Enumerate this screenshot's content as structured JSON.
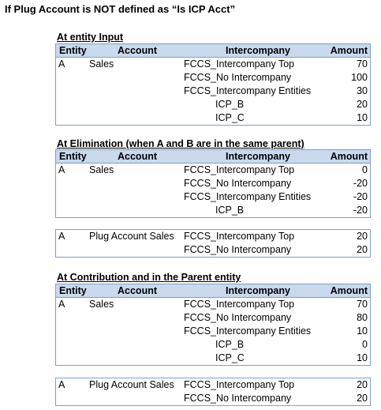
{
  "title": "If Plug Account is NOT defined as “Is ICP Acct”",
  "headers": {
    "entity": "Entity",
    "account": "Account",
    "intercompany": "Intercompany",
    "amount": "Amount"
  },
  "sections": [
    {
      "title": "At entity Input",
      "tables": [
        {
          "has_header": true,
          "rows": [
            {
              "entity": "A",
              "account": "Sales",
              "intercompany": "FCCS_Intercompany Top",
              "amount": "70"
            },
            {
              "entity": "",
              "account": "",
              "intercompany": "FCCS_No Intercompany",
              "amount": "100"
            },
            {
              "entity": "",
              "account": "",
              "intercompany": "FCCS_Intercompany Entities",
              "amount": "30"
            },
            {
              "entity": "",
              "account": "",
              "intercompany": "ICP_B",
              "amount": "20",
              "sub": true
            },
            {
              "entity": "",
              "account": "",
              "intercompany": "ICP_C",
              "amount": "10",
              "sub": true
            }
          ]
        }
      ]
    },
    {
      "title": "At Elimination (when A and B are in the same parent)",
      "tables": [
        {
          "has_header": true,
          "rows": [
            {
              "entity": "A",
              "account": "Sales",
              "intercompany": "FCCS_Intercompany Top",
              "amount": "0"
            },
            {
              "entity": "",
              "account": "",
              "intercompany": "FCCS_No Intercompany",
              "amount": "-20"
            },
            {
              "entity": "",
              "account": "",
              "intercompany": "FCCS_Intercompany Entities",
              "amount": "-20"
            },
            {
              "entity": "",
              "account": "",
              "intercompany": "ICP_B",
              "amount": "-20",
              "sub": true
            }
          ]
        },
        {
          "has_header": false,
          "rows": [
            {
              "entity": "A",
              "account": "Plug Account Sales",
              "intercompany": "FCCS_Intercompany Top",
              "amount": "20"
            },
            {
              "entity": "",
              "account": "",
              "intercompany": "FCCS_No Intercompany",
              "amount": "20"
            }
          ]
        }
      ]
    },
    {
      "title": "At Contribution and in the Parent entity",
      "tables": [
        {
          "has_header": true,
          "rows": [
            {
              "entity": "A",
              "account": "Sales",
              "intercompany": "FCCS_Intercompany Top",
              "amount": "70"
            },
            {
              "entity": "",
              "account": "",
              "intercompany": "FCCS_No Intercompany",
              "amount": "80"
            },
            {
              "entity": "",
              "account": "",
              "intercompany": "FCCS_Intercompany Entities",
              "amount": "10"
            },
            {
              "entity": "",
              "account": "",
              "intercompany": "ICP_B",
              "amount": "0",
              "sub": true
            },
            {
              "entity": "",
              "account": "",
              "intercompany": "ICP_C",
              "amount": "10",
              "sub": true
            }
          ]
        },
        {
          "has_header": false,
          "rows": [
            {
              "entity": "A",
              "account": "Plug Account Sales",
              "intercompany": "FCCS_Intercompany Top",
              "amount": "20"
            },
            {
              "entity": "",
              "account": "",
              "intercompany": "FCCS_No Intercompany",
              "amount": "20"
            }
          ]
        }
      ]
    }
  ]
}
